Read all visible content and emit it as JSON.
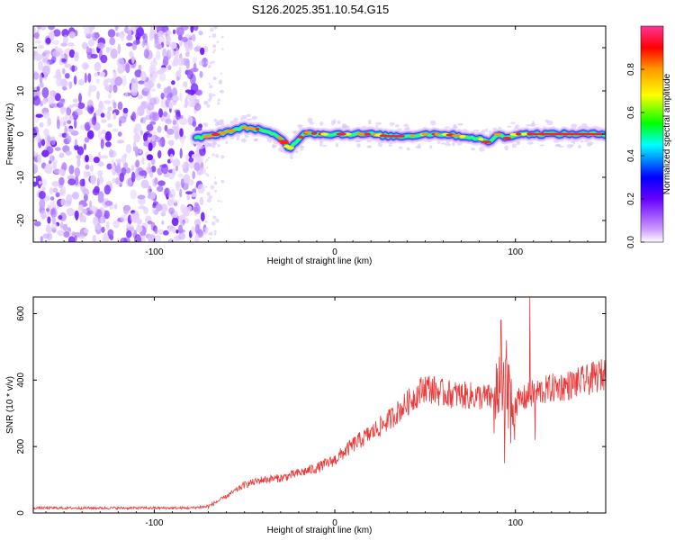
{
  "title": "S126.2025.351.10.54.G15",
  "chart_data": [
    {
      "type": "heatmap",
      "xlabel": "Height of straight line (km)",
      "ylabel": "Frequency (Hz)",
      "xlim": [
        -167,
        150
      ],
      "ylim": [
        -25,
        25
      ],
      "xticks": [
        -100,
        0,
        100
      ],
      "yticks": [
        -20,
        -10,
        0,
        10,
        20
      ],
      "xtick_labels": [
        "-100",
        "0",
        "100"
      ],
      "ytick_labels": [
        "-20",
        "-10",
        "0",
        "10",
        "20"
      ],
      "noise_region_x": [
        -167,
        -72
      ],
      "ridge": {
        "x": [
          -77,
          -70,
          -60,
          -50,
          -40,
          -30,
          -25,
          -20,
          -15,
          -10,
          0,
          10,
          20,
          30,
          40,
          50,
          60,
          70,
          80,
          85,
          90,
          95,
          100,
          110,
          120,
          130,
          140,
          150
        ],
        "freq": [
          -1,
          -0.5,
          0.5,
          1.5,
          1,
          -1,
          -3.5,
          -1,
          0.5,
          0,
          0,
          0,
          0,
          -0.5,
          -0.5,
          0,
          0,
          -0.5,
          -1,
          -2,
          0,
          -1,
          0,
          0,
          0,
          0,
          0,
          0
        ]
      },
      "colorbar": {
        "label": "Normalized spectral amplitude",
        "range": [
          0,
          1
        ],
        "ticks": [
          "0.0",
          "0.2",
          "0.4",
          "0.6",
          "0.8"
        ],
        "colors": [
          "#cc99ff",
          "#6600ff",
          "#0000ff",
          "#00ffff",
          "#00ff00",
          "#ffff00",
          "#ff9900",
          "#ff0000",
          "#ff3399"
        ]
      }
    },
    {
      "type": "line",
      "xlabel": "Height of straight line (km)",
      "ylabel": "SNR (10 * v/v)",
      "xlim": [
        -167,
        150
      ],
      "ylim": [
        0,
        650
      ],
      "xticks": [
        -100,
        0,
        100
      ],
      "yticks": [
        0,
        200,
        400,
        600
      ],
      "xtick_labels": [
        "-100",
        "0",
        "100"
      ],
      "ytick_labels": [
        "0",
        "200",
        "400",
        "600"
      ],
      "color": "#e83a3a",
      "trend": {
        "x": [
          -167,
          -80,
          -70,
          -60,
          -50,
          -40,
          -30,
          -20,
          -10,
          0,
          10,
          20,
          30,
          40,
          50,
          60,
          70,
          80,
          90,
          100,
          110,
          120,
          130,
          140,
          150
        ],
        "y": [
          15,
          15,
          20,
          50,
          85,
          100,
          105,
          120,
          135,
          160,
          205,
          240,
          280,
          330,
          380,
          360,
          355,
          350,
          345,
          330,
          360,
          375,
          385,
          400,
          420
        ]
      },
      "spikes": [
        {
          "x": 92,
          "y": 580
        },
        {
          "x": 95,
          "y": 520
        },
        {
          "x": 94,
          "y": 150
        },
        {
          "x": 108,
          "y": 650
        },
        {
          "x": 111,
          "y": 220
        }
      ]
    }
  ]
}
